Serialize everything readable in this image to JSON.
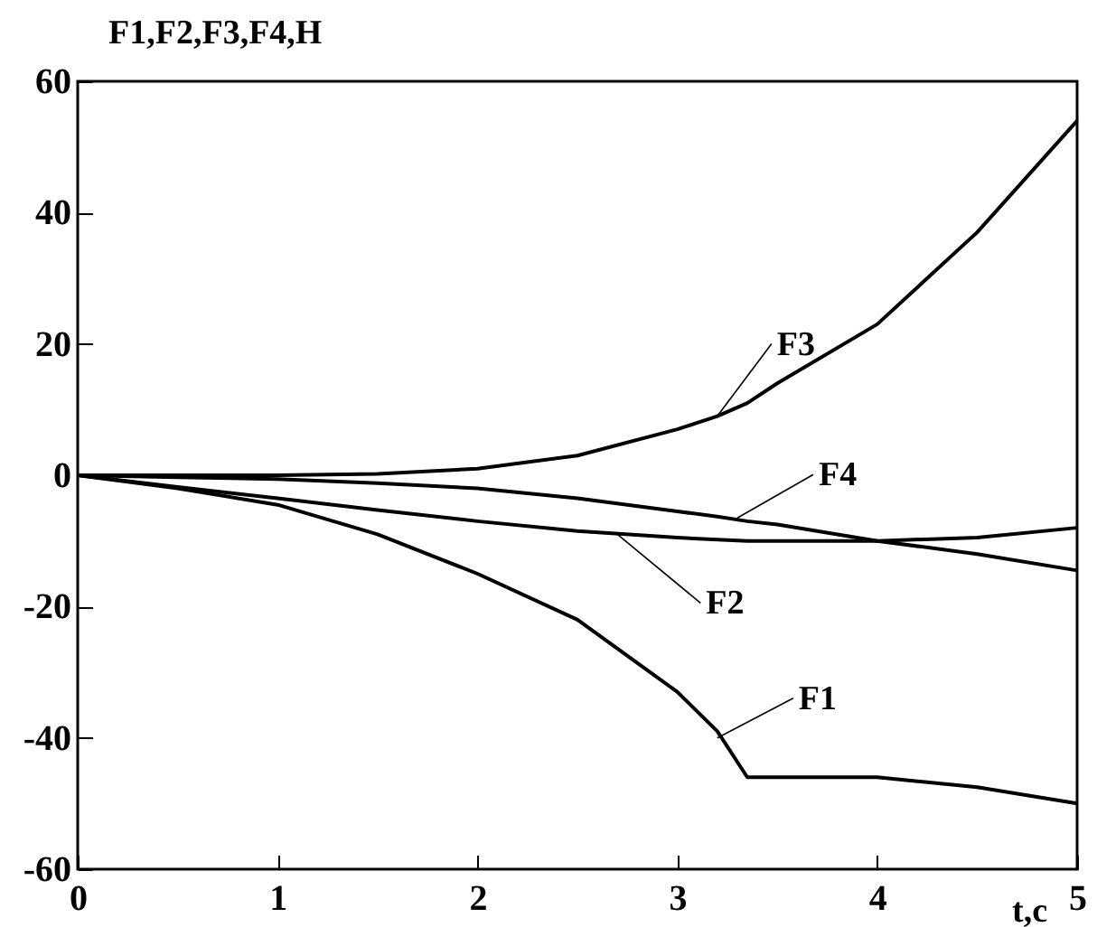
{
  "chart_data": {
    "type": "line",
    "ylabel": "F1,F2,F3,F4,H",
    "xlabel": "t,c",
    "x": [
      0,
      0.5,
      1,
      1.5,
      2,
      2.5,
      3,
      3.2,
      3.35,
      3.5,
      4,
      4.5,
      5
    ],
    "series": [
      {
        "color": "#000000",
        "values": [
          0,
          -2,
          -4.5,
          -9,
          -15,
          -22,
          -33,
          -39,
          -46,
          -46,
          -46,
          -47.5,
          -50
        ]
      },
      {
        "color": "#000000",
        "values": [
          0,
          -1.8,
          -3.5,
          -5.3,
          -7,
          -8.5,
          -9.5,
          -9.8,
          -10,
          -10,
          -10,
          -9.5,
          -8
        ]
      },
      {
        "color": "#000000",
        "values": [
          0,
          0,
          0,
          0.2,
          1,
          3,
          7,
          9,
          11,
          14,
          23,
          37,
          54
        ]
      },
      {
        "color": "#000000",
        "values": [
          0,
          -0.3,
          -0.6,
          -1.2,
          -2,
          -3.5,
          -5.5,
          -6.3,
          -7,
          -7.5,
          -10,
          -12,
          -14.5
        ]
      }
    ],
    "annotations": [
      {
        "text": "F1",
        "x": 3.2,
        "y": -40
      },
      {
        "text": "F2",
        "x": 2.7,
        "y": -9
      },
      {
        "text": "F3",
        "x": 3.2,
        "y": 9
      },
      {
        "text": "F4",
        "x": 3.3,
        "y": -6.5
      }
    ],
    "xlim": [
      0,
      5
    ],
    "xticks": [
      0,
      1,
      2,
      3,
      4,
      5
    ],
    "ylim": [
      -60,
      60
    ],
    "yticks": [
      -60,
      -40,
      -20,
      0,
      20,
      40,
      60
    ],
    "grid": false,
    "legend": false
  }
}
